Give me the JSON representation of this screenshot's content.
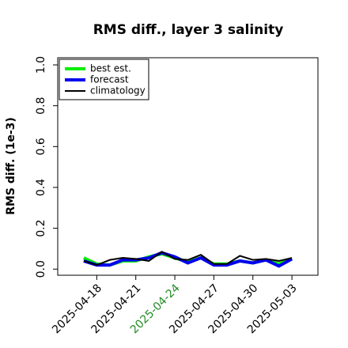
{
  "chart_data": {
    "type": "line",
    "title": "RMS diff., layer 3 salinity",
    "ylabel": "RMS diff. (1e-3)",
    "x": [
      "2025-04-17",
      "2025-04-18",
      "2025-04-19",
      "2025-04-20",
      "2025-04-21",
      "2025-04-22",
      "2025-04-23",
      "2025-04-24",
      "2025-04-25",
      "2025-04-26",
      "2025-04-27",
      "2025-04-28",
      "2025-04-29",
      "2025-04-30",
      "2025-05-01",
      "2025-05-02",
      "2025-05-03"
    ],
    "series": [
      {
        "name": "best est.",
        "color": "#00ee00",
        "width": 4,
        "values": [
          0.055,
          0.025,
          0.02,
          0.04,
          0.04,
          0.06,
          0.075,
          0.055,
          0.035,
          0.055,
          0.025,
          0.025,
          0.04,
          0.03,
          0.045,
          0.025,
          0.05
        ]
      },
      {
        "name": "forecast",
        "color": "#0000ee",
        "width": 4,
        "values": [
          0.04,
          0.02,
          0.02,
          0.045,
          0.045,
          0.055,
          0.08,
          0.06,
          0.03,
          0.055,
          0.02,
          0.02,
          0.04,
          0.03,
          0.045,
          0.015,
          0.05
        ]
      },
      {
        "name": "climatology",
        "color": "#000000",
        "width": 2,
        "values": [
          0.04,
          0.02,
          0.045,
          0.055,
          0.05,
          0.04,
          0.085,
          0.05,
          0.045,
          0.07,
          0.025,
          0.025,
          0.065,
          0.045,
          0.05,
          0.04,
          0.055
        ]
      }
    ],
    "xlim": [
      "2025-04-15",
      "2025-05-05"
    ],
    "xticks": [
      "2025-04-18",
      "2025-04-21",
      "2025-04-24",
      "2025-04-27",
      "2025-04-30",
      "2025-05-03"
    ],
    "xtick_colors": [
      "#000000",
      "#000000",
      "#228b22",
      "#000000",
      "#000000",
      "#000000"
    ],
    "ylim": [
      -0.03,
      1.035
    ],
    "yticks": [
      {
        "value": 0,
        "label": "0.0"
      },
      {
        "value": 0.2,
        "label": "0.2"
      },
      {
        "value": 0.4,
        "label": "0.4"
      },
      {
        "value": 0.6,
        "label": "0.6"
      },
      {
        "value": 0.8,
        "label": "0.8"
      },
      {
        "value": 1,
        "label": "1.0"
      }
    ],
    "legend": "top-left"
  }
}
